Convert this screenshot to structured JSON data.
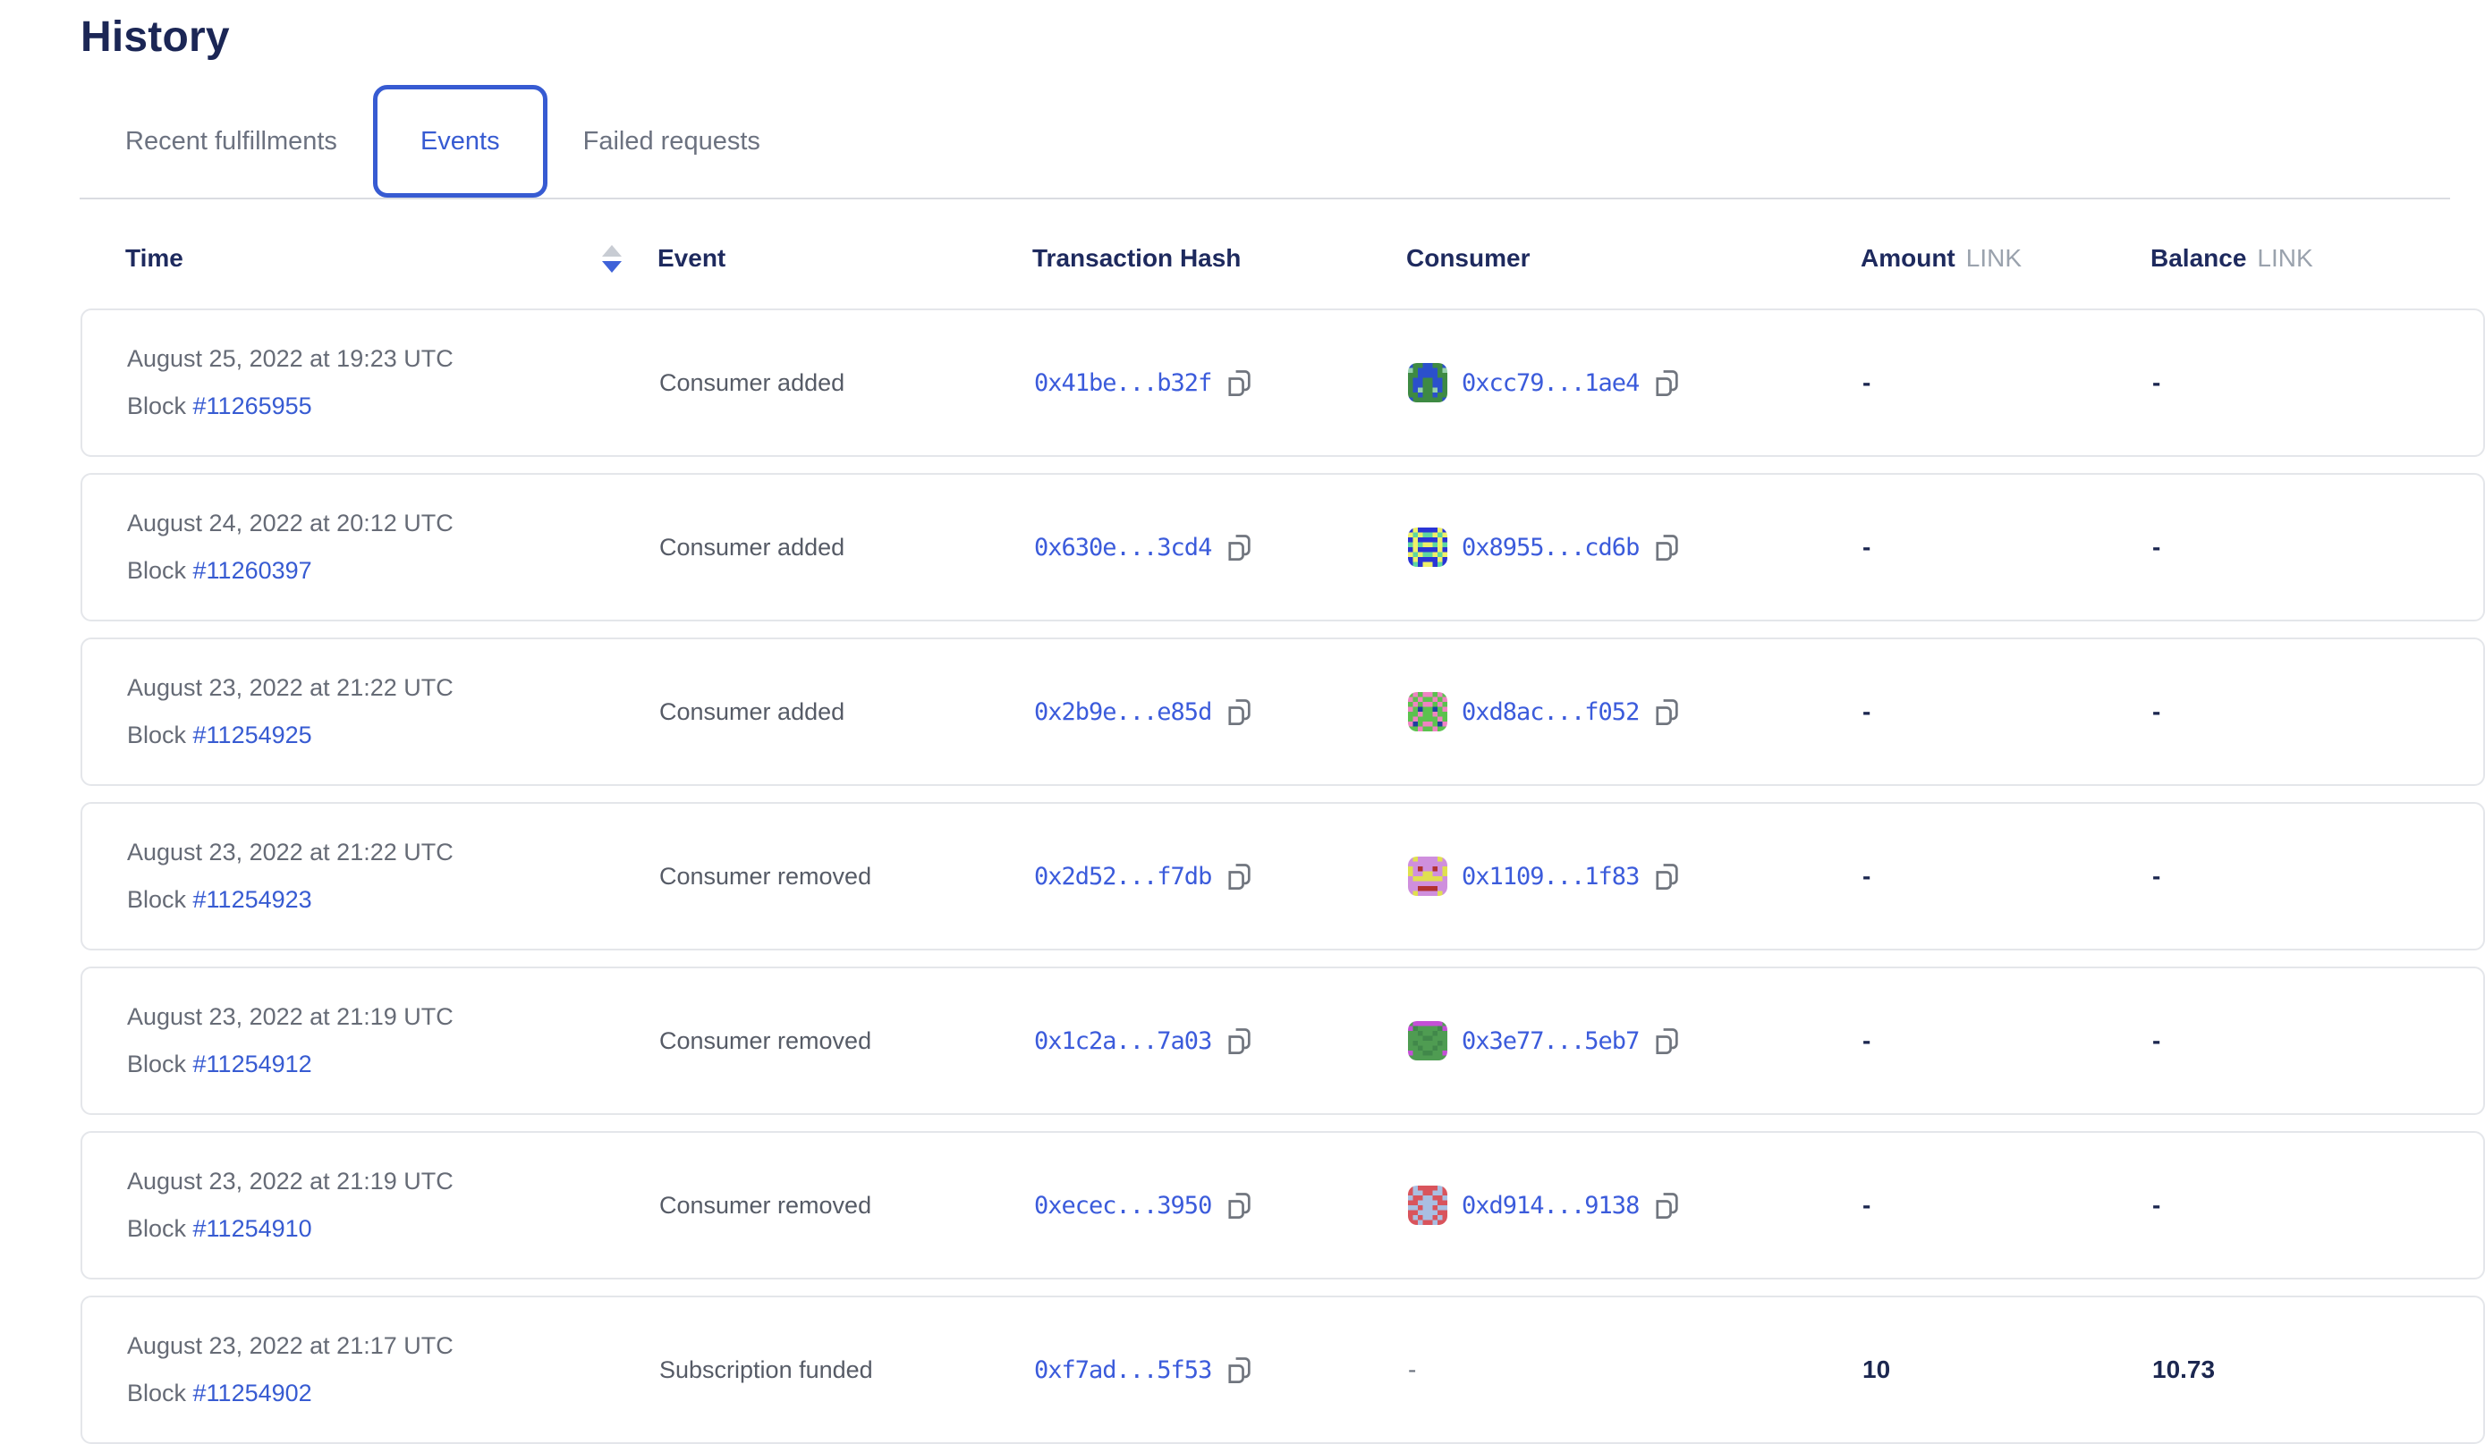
{
  "page": {
    "title": "History"
  },
  "colors": {
    "accent_blue": "#375bd2",
    "heading_navy": "#1b2655",
    "muted_gray": "#666b76",
    "link_blue": "#3b5bdb",
    "card_border": "#e4e6ea"
  },
  "tabs": [
    {
      "label": "Recent fulfillments",
      "active": false
    },
    {
      "label": "Events",
      "active": true
    },
    {
      "label": "Failed requests",
      "active": false
    }
  ],
  "table": {
    "headers": {
      "time": "Time",
      "event": "Event",
      "transaction_hash": "Transaction Hash",
      "consumer": "Consumer",
      "amount": "Amount",
      "balance": "Balance",
      "unit": "LINK"
    },
    "block_label": "Block",
    "rows": [
      {
        "date": "August 25, 2022 at 19:23 UTC",
        "block": "#11265955",
        "event": "Consumer added",
        "tx_hash": "0x41be...b32f",
        "consumer": {
          "hash": "0xcc79...1ae4",
          "avatar": {
            "palette": {
              "g": "#3e8a43",
              "b": "#2b50cc",
              "t": "#96d0ad"
            },
            "pattern": [
              "bggbbggb",
              "tgbbbbgt",
              "ggbbbbgg",
              "gbbggbbg",
              "gbbggbbg",
              "gbtggtbg",
              "ggbggbgg",
              "bggggggb"
            ]
          }
        },
        "amount": "-",
        "balance": "-"
      },
      {
        "date": "August 24, 2022 at 20:12 UTC",
        "block": "#11260397",
        "event": "Consumer added",
        "tx_hash": "0x630e...3cd4",
        "consumer": {
          "hash": "0x8955...cd6b",
          "avatar": {
            "palette": {
              "b": "#2a35d6",
              "y": "#eef06a",
              "g": "#5fd6a0"
            },
            "pattern": [
              "bybbbbyb",
              "ygyggygy",
              "bybbbbyb",
              "gygyygyg",
              "bybbbbyb",
              "ygyggygy",
              "bybbbbyb",
              "bgbyybgb"
            ]
          }
        },
        "amount": "-",
        "balance": "-"
      },
      {
        "date": "August 23, 2022 at 21:22 UTC",
        "block": "#11254925",
        "event": "Consumer added",
        "tx_hash": "0x2b9e...e85d",
        "consumer": {
          "hash": "0xd8ac...f052",
          "avatar": {
            "palette": {
              "g": "#5bc24e",
              "p": "#ef82c3",
              "n": "#1f3f9f"
            },
            "pattern": [
              "gpgppgpg",
              "pgpggpgp",
              "gpgppgpg",
              "pgnggngp",
              "ggpggpgg",
              "gpggggpg",
              "pngppgnp",
              "ggpggpgg"
            ]
          }
        },
        "amount": "-",
        "balance": "-"
      },
      {
        "date": "August 23, 2022 at 21:22 UTC",
        "block": "#11254923",
        "event": "Consumer removed",
        "tx_hash": "0x2d52...f7db",
        "consumer": {
          "hash": "0x1109...1f83",
          "avatar": {
            "palette": {
              "v": "#cf8fdd",
              "y": "#e0e04f",
              "r": "#b23230"
            },
            "pattern": [
              "vyvvvvyv",
              "vvvvvvvv",
              "yvrvvrvy",
              "yvvyyvvy",
              "vyyyyyyv",
              "vvvvvvvv",
              "vvrrrrvv",
              "vyvvvvyv"
            ]
          }
        },
        "amount": "-",
        "balance": "-"
      },
      {
        "date": "August 23, 2022 at 21:19 UTC",
        "block": "#11254912",
        "event": "Consumer removed",
        "tx_hash": "0x1c2a...7a03",
        "consumer": {
          "hash": "0x3e77...5eb7",
          "avatar": {
            "palette": {
              "g": "#4f9c52",
              "d": "#41884a",
              "m": "#c44fd6"
            },
            "pattern": [
              "gmmmmmmg",
              "mdggggdm",
              "ggdggdgg",
              "gggddggg",
              "gdggggdg",
              "ggdggdgg",
              "mggddggm",
              "gggggggg"
            ]
          }
        },
        "amount": "-",
        "balance": "-"
      },
      {
        "date": "August 23, 2022 at 21:19 UTC",
        "block": "#11254910",
        "event": "Consumer removed",
        "tx_hash": "0xecec...3950",
        "consumer": {
          "hash": "0xd914...9138",
          "avatar": {
            "palette": {
              "r": "#d9545c",
              "l": "#a9bfe2"
            },
            "pattern": [
              "rlrrrrlr",
              "rllrrllr",
              "lrrllrrl",
              "rrllllrr",
              "llrllrll",
              "rrllllrr",
              "rlrllrlr",
              "rrlrrlrr"
            ]
          }
        },
        "amount": "-",
        "balance": "-"
      },
      {
        "date": "August 23, 2022 at 21:17 UTC",
        "block": "#11254902",
        "event": "Subscription funded",
        "tx_hash": "0xf7ad...5f53",
        "consumer": null,
        "consumer_empty": "-",
        "amount": "10",
        "balance": "10.73"
      }
    ]
  }
}
